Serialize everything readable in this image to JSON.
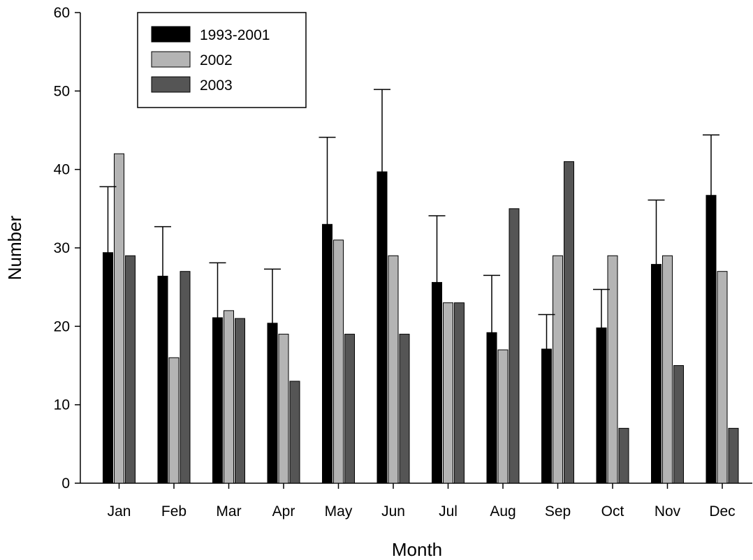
{
  "chart_data": {
    "type": "bar",
    "title": "",
    "xlabel": "Month",
    "ylabel": "Number",
    "ylim": [
      0,
      60
    ],
    "yticks": [
      0,
      10,
      20,
      30,
      40,
      50,
      60
    ],
    "categories": [
      "Jan",
      "Feb",
      "Mar",
      "Apr",
      "May",
      "Jun",
      "Jul",
      "Aug",
      "Sep",
      "Oct",
      "Nov",
      "Dec"
    ],
    "series": [
      {
        "name": "1993-2001",
        "color": "#000000",
        "values": [
          29.4,
          26.4,
          21.1,
          20.4,
          33.0,
          39.7,
          25.6,
          19.2,
          17.1,
          19.8,
          27.9,
          36.7
        ],
        "error_upper": [
          37.8,
          32.7,
          28.1,
          27.3,
          44.1,
          50.2,
          34.1,
          26.5,
          21.5,
          24.7,
          36.1,
          44.4
        ]
      },
      {
        "name": "2002",
        "color": "#b4b4b4",
        "values": [
          42,
          16,
          22,
          19,
          31,
          29,
          23,
          17,
          29,
          29,
          29,
          27
        ]
      },
      {
        "name": "2003",
        "color": "#555555",
        "values": [
          29,
          27,
          21,
          13,
          19,
          19,
          23,
          35,
          41,
          7,
          15,
          7
        ]
      }
    ],
    "legend": {
      "position": "top-left"
    },
    "grid": false
  }
}
